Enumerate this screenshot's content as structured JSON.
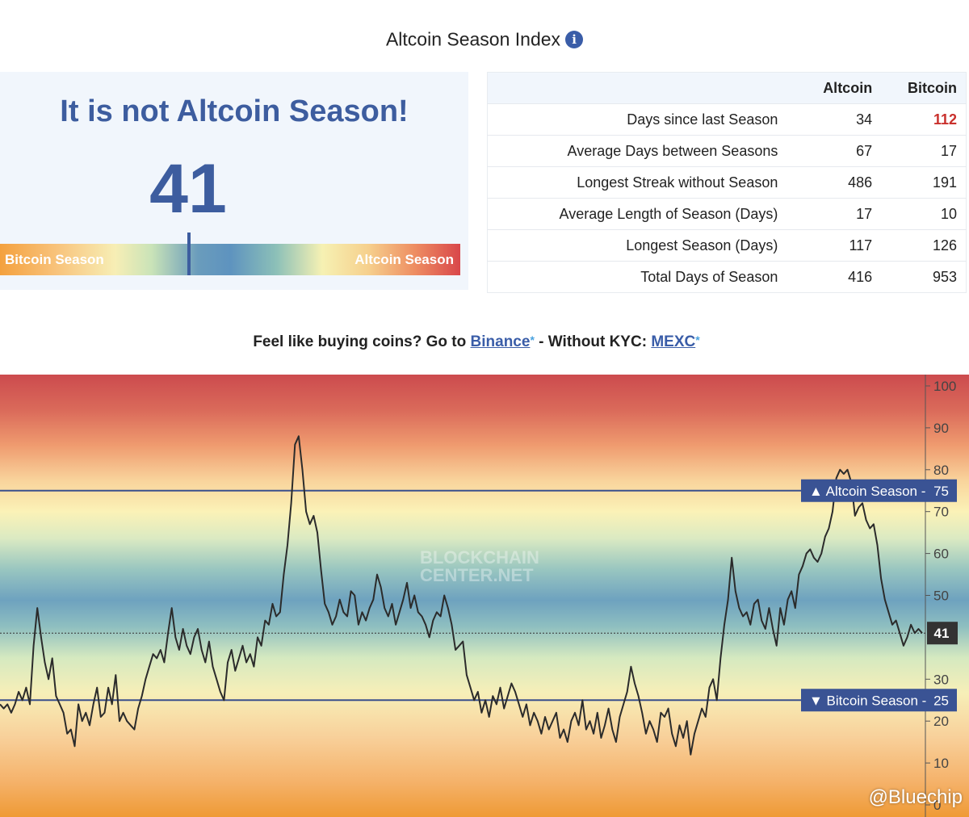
{
  "page": {
    "title": "Altcoin Season Index",
    "info_icon": "info-icon"
  },
  "season_card": {
    "headline": "It is not Altcoin Season!",
    "index_value": "41",
    "bar": {
      "left_label": "Bitcoin Season",
      "right_label": "Altcoin Season",
      "marker_value": 41
    }
  },
  "stats": {
    "headers": [
      "Altcoin",
      "Bitcoin"
    ],
    "rows": [
      {
        "label": "Days since last Season",
        "altcoin": "34",
        "bitcoin": "112"
      },
      {
        "label": "Average Days between Seasons",
        "altcoin": "67",
        "bitcoin": "17"
      },
      {
        "label": "Longest Streak without Season",
        "altcoin": "486",
        "bitcoin": "191"
      },
      {
        "label": "Average Length of Season (Days)",
        "altcoin": "17",
        "bitcoin": "10"
      },
      {
        "label": "Longest Season (Days)",
        "altcoin": "117",
        "bitcoin": "126"
      },
      {
        "label": "Total Days of Season",
        "altcoin": "416",
        "bitcoin": "953"
      }
    ],
    "highlight_color": "#c9302c"
  },
  "promo": {
    "prefix": "Feel like buying coins? Go to",
    "link1": "Binance",
    "middle": "- Without KYC:",
    "link2": "MEXC",
    "asterisk": "*"
  },
  "chart_data": {
    "type": "line",
    "ylim": [
      0,
      100
    ],
    "yticks": [
      "100",
      "90",
      "80",
      "70",
      "60",
      "50",
      "30",
      "20",
      "10",
      "0"
    ],
    "current_value": "41",
    "thresholds": [
      {
        "label": "▲ Altcoin Season",
        "value_text": "75",
        "value": 75
      },
      {
        "label": "▼ Bitcoin Season",
        "value_text": "25",
        "value": 25
      }
    ],
    "watermark": [
      "BLOCKCHAIN",
      "CENTER.NET"
    ],
    "series": [
      {
        "values": [
          24,
          23,
          24,
          22,
          24,
          27,
          25,
          28,
          24,
          38,
          47,
          40,
          34,
          30,
          35,
          26,
          24,
          22,
          17,
          18,
          14,
          24,
          20,
          22,
          19,
          24,
          28,
          21,
          22,
          28,
          24,
          31,
          20,
          22,
          20,
          19,
          18,
          23,
          26,
          30,
          33,
          36,
          35,
          37,
          34,
          41,
          47,
          40,
          37,
          42,
          38,
          36,
          40,
          42,
          37,
          34,
          39,
          33,
          30,
          27,
          25,
          34,
          37,
          32,
          35,
          38,
          34,
          36,
          33,
          40,
          38,
          44,
          43,
          48,
          45,
          46,
          55,
          62,
          72,
          86,
          88,
          80,
          70,
          67,
          69,
          65,
          56,
          48,
          46,
          43,
          45,
          49,
          46,
          45,
          51,
          50,
          43,
          46,
          44,
          47,
          49,
          55,
          52,
          47,
          45,
          48,
          43,
          46,
          49,
          53,
          47,
          50,
          46,
          45,
          43,
          40,
          44,
          46,
          45,
          50,
          47,
          43,
          37,
          38,
          39,
          31,
          28,
          25,
          27,
          22,
          25,
          21,
          26,
          24,
          28,
          23,
          26,
          29,
          27,
          24,
          21,
          24,
          19,
          22,
          20,
          17,
          21,
          18,
          20,
          22,
          16,
          18,
          15,
          20,
          22,
          19,
          25,
          18,
          20,
          17,
          22,
          16,
          19,
          23,
          18,
          15,
          21,
          24,
          27,
          33,
          29,
          26,
          22,
          17,
          20,
          18,
          15,
          22,
          21,
          23,
          17,
          14,
          19,
          16,
          20,
          12,
          17,
          20,
          23,
          21,
          28,
          30,
          25,
          35,
          43,
          49,
          59,
          51,
          47,
          45,
          46,
          43,
          48,
          49,
          44,
          42,
          47,
          42,
          38,
          47,
          43,
          49,
          51,
          47,
          55,
          57,
          60,
          61,
          59,
          58,
          60,
          64,
          66,
          70,
          78,
          80,
          79,
          80,
          77,
          69,
          71,
          72,
          68,
          66,
          67,
          62,
          54,
          49,
          46,
          43,
          44,
          41,
          38,
          40,
          43,
          41,
          42,
          41
        ]
      }
    ]
  },
  "credit": "@Bluechip",
  "colors": {
    "accent": "#3d5d9f",
    "threshold_line": "#3a4f8c",
    "label_bg": "#3a5394",
    "current_bg": "#333333"
  }
}
